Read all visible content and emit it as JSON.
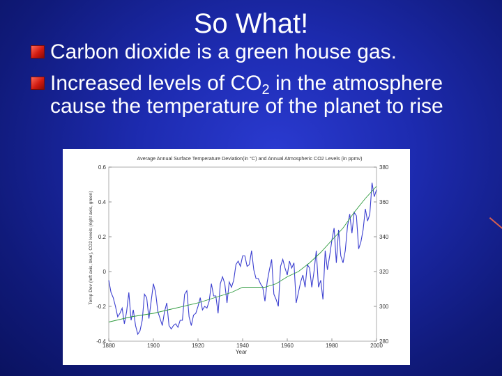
{
  "slide": {
    "title": "So What!",
    "bullet1": "Carbon dioxide is a green house gas.",
    "bullet2_pre": " Increased levels of CO",
    "bullet2_sub": "2",
    "bullet2_post": " in the atmosphere cause the temperature of the planet to rise"
  },
  "colors": {
    "temp": "#3b3fd0",
    "co2": "#2e9a3e",
    "bullet": "#d11b10"
  },
  "chart_data": {
    "type": "line",
    "title": "Average Annual Surface Temperature Deviation(in °C) and Annual Atmospheric CO2 Levels (in ppmv)",
    "xlabel": "Year",
    "ylabel": "Temp Dev (left axis, blue), CO2 levels (right axis, green)",
    "xlim": [
      1880,
      2000
    ],
    "ylim": [
      -0.4,
      0.6
    ],
    "y2lim": [
      280,
      380
    ],
    "xticks": [
      "1880",
      "1900",
      "1920",
      "1940",
      "1960",
      "1980",
      "2000"
    ],
    "yticks": [
      "-0.4",
      "-0.2",
      "0",
      "0.2",
      "0.4",
      "0.6"
    ],
    "y2ticks": [
      "280",
      "300",
      "320",
      "340",
      "360",
      "380"
    ],
    "series": [
      {
        "axis": "left",
        "color": "#3b3fd0",
        "x": [
          1880,
          1881,
          1882,
          1883,
          1884,
          1885,
          1886,
          1887,
          1888,
          1889,
          1890,
          1891,
          1892,
          1893,
          1894,
          1895,
          1896,
          1897,
          1898,
          1899,
          1900,
          1901,
          1902,
          1903,
          1904,
          1905,
          1906,
          1907,
          1908,
          1909,
          1910,
          1911,
          1912,
          1913,
          1914,
          1915,
          1916,
          1917,
          1918,
          1919,
          1920,
          1921,
          1922,
          1923,
          1924,
          1925,
          1926,
          1927,
          1928,
          1929,
          1930,
          1931,
          1932,
          1933,
          1934,
          1935,
          1936,
          1937,
          1938,
          1939,
          1940,
          1941,
          1942,
          1943,
          1944,
          1945,
          1946,
          1947,
          1948,
          1949,
          1950,
          1951,
          1952,
          1953,
          1954,
          1955,
          1956,
          1957,
          1958,
          1959,
          1960,
          1961,
          1962,
          1963,
          1964,
          1965,
          1966,
          1967,
          1968,
          1969,
          1970,
          1971,
          1972,
          1973,
          1974,
          1975,
          1976,
          1977,
          1978,
          1979,
          1980,
          1981,
          1982,
          1983,
          1984,
          1985,
          1986,
          1987,
          1988,
          1989,
          1990,
          1991,
          1992,
          1993,
          1994,
          1995,
          1996,
          1997,
          1998,
          1999,
          2000
        ],
        "y": [
          -0.05,
          -0.12,
          -0.15,
          -0.2,
          -0.26,
          -0.24,
          -0.21,
          -0.3,
          -0.23,
          -0.12,
          -0.28,
          -0.22,
          -0.31,
          -0.36,
          -0.34,
          -0.28,
          -0.13,
          -0.15,
          -0.27,
          -0.17,
          -0.07,
          -0.12,
          -0.23,
          -0.27,
          -0.31,
          -0.23,
          -0.18,
          -0.31,
          -0.33,
          -0.31,
          -0.3,
          -0.32,
          -0.28,
          -0.28,
          -0.13,
          -0.11,
          -0.26,
          -0.31,
          -0.25,
          -0.24,
          -0.2,
          -0.15,
          -0.22,
          -0.2,
          -0.21,
          -0.17,
          -0.07,
          -0.14,
          -0.14,
          -0.24,
          -0.07,
          -0.03,
          -0.07,
          -0.18,
          -0.06,
          -0.09,
          -0.05,
          0.04,
          0.06,
          0.03,
          0.09,
          0.09,
          0.03,
          0.04,
          0.12,
          0.01,
          -0.04,
          -0.04,
          -0.07,
          -0.09,
          -0.17,
          -0.06,
          0.01,
          0.07,
          -0.13,
          -0.16,
          -0.2,
          0.03,
          0.07,
          0.02,
          -0.02,
          0.06,
          0.02,
          0.05,
          -0.18,
          -0.12,
          -0.06,
          -0.02,
          -0.09,
          0.04,
          0.02,
          -0.09,
          0.0,
          0.12,
          -0.09,
          -0.05,
          -0.16,
          0.12,
          0.01,
          0.09,
          0.18,
          0.25,
          0.05,
          0.24,
          0.09,
          0.05,
          0.12,
          0.26,
          0.33,
          0.22,
          0.34,
          0.32,
          0.13,
          0.17,
          0.24,
          0.36,
          0.29,
          0.33,
          0.51,
          0.43,
          0.47
        ]
      },
      {
        "axis": "right",
        "color": "#2e9a3e",
        "x": [
          1880,
          1890,
          1900,
          1910,
          1920,
          1930,
          1935,
          1940,
          1945,
          1950,
          1955,
          1960,
          1965,
          1970,
          1975,
          1980,
          1985,
          1990,
          1995,
          2000
        ],
        "y": [
          291,
          294,
          296,
          299,
          302,
          306,
          308,
          311,
          311,
          311,
          313,
          317,
          320,
          325,
          331,
          338,
          345,
          354,
          362,
          369
        ]
      }
    ],
    "grid": false,
    "legend": "none"
  }
}
